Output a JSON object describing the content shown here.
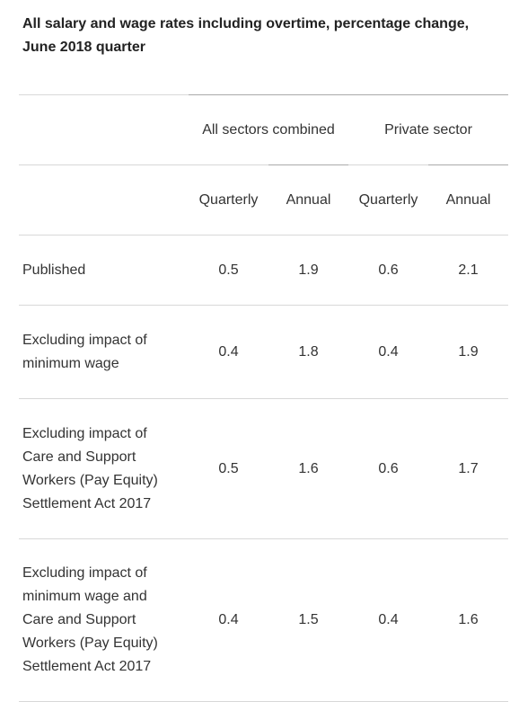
{
  "title": "All salary and wage rates including overtime, percentage change, June 2018 quarter",
  "table": {
    "groups": [
      "All sectors combined",
      "Private sector"
    ],
    "subheaders": [
      "Quarterly",
      "Annual",
      "Quarterly",
      "Annual"
    ],
    "rows": [
      [
        "Published",
        "0.5",
        "1.9",
        "0.6",
        "2.1"
      ],
      [
        "Excluding impact of minimum wage",
        "0.4",
        "1.8",
        "0.4",
        "1.9"
      ],
      [
        "Excluding impact of Care and Support Workers (Pay Equity) Settlement Act 2017",
        "0.5",
        "1.6",
        "0.6",
        "1.7"
      ],
      [
        "Excluding impact of minimum wage and Care and Support Workers (Pay Equity) Settlement Act 2017",
        "0.4",
        "1.5",
        "0.4",
        "1.6"
      ]
    ]
  }
}
